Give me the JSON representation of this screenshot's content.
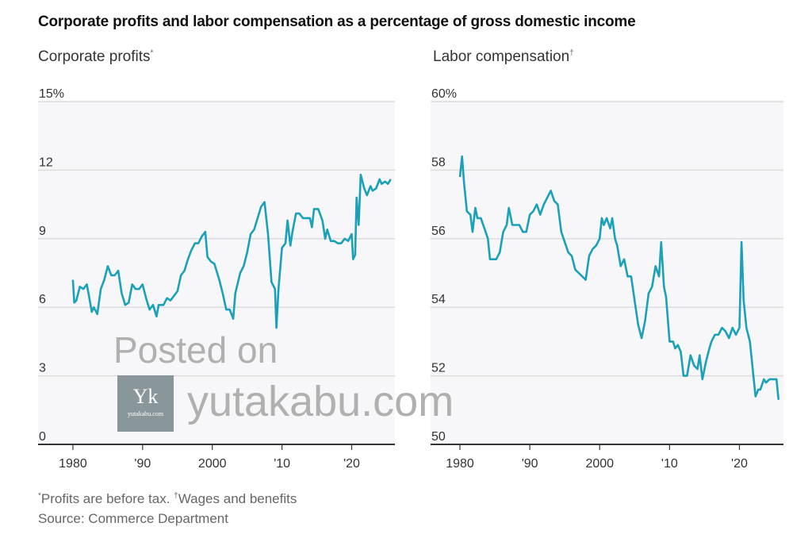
{
  "title": "Corporate profits and labor compensation as a percentage of gross domestic income",
  "footnotes": {
    "mark1": "*",
    "note1": "Profits are before tax.",
    "mark2": "†",
    "note2": "Wages and benefits",
    "source": "Source: Commerce Department"
  },
  "watermark": {
    "posted_on": "Posted on",
    "site": "yutakabu.com",
    "logo_letters": "Yk",
    "logo_site": "yutakabu.com"
  },
  "colors": {
    "line": "#1aa0b8",
    "plot_bg": "#f7f7f9",
    "grid": "#dcdcdc",
    "axis": "#333333"
  },
  "chart_data": [
    {
      "type": "line",
      "title": "Corporate profits",
      "title_mark": "*",
      "ylim": [
        0,
        15
      ],
      "yticks": [
        0,
        3,
        6,
        9,
        12,
        15
      ],
      "ytick_labels": [
        "0",
        "3",
        "6",
        "9",
        "12",
        "15%"
      ],
      "xlim": [
        1975,
        2026.2
      ],
      "xticks": [
        1980,
        1990,
        2000,
        2010,
        2020
      ],
      "xtick_labels": [
        "1980",
        "'90",
        "2000",
        "'10",
        "'20"
      ],
      "grid": true,
      "series": [
        {
          "name": "Corporate profits",
          "points": [
            [
              1980,
              7.2
            ],
            [
              1980.2,
              6.2
            ],
            [
              1980.5,
              6.3
            ],
            [
              1981,
              6.9
            ],
            [
              1981.5,
              6.8
            ],
            [
              1982,
              7.0
            ],
            [
              1982.3,
              6.5
            ],
            [
              1982.7,
              5.8
            ],
            [
              1983,
              6.0
            ],
            [
              1983.5,
              5.7
            ],
            [
              1984,
              6.8
            ],
            [
              1984.5,
              7.2
            ],
            [
              1985,
              7.8
            ],
            [
              1985.5,
              7.4
            ],
            [
              1986,
              7.4
            ],
            [
              1986.5,
              7.6
            ],
            [
              1987,
              6.6
            ],
            [
              1987.5,
              6.1
            ],
            [
              1988,
              6.2
            ],
            [
              1988.5,
              7.0
            ],
            [
              1989,
              6.8
            ],
            [
              1989.5,
              6.8
            ],
            [
              1990,
              7.0
            ],
            [
              1990.5,
              6.4
            ],
            [
              1991,
              5.9
            ],
            [
              1991.5,
              6.1
            ],
            [
              1992,
              5.6
            ],
            [
              1992.3,
              6.1
            ],
            [
              1993,
              6.1
            ],
            [
              1993.5,
              6.4
            ],
            [
              1994,
              6.3
            ],
            [
              1994.5,
              6.5
            ],
            [
              1995,
              6.7
            ],
            [
              1995.5,
              7.4
            ],
            [
              1996,
              7.6
            ],
            [
              1996.5,
              8.1
            ],
            [
              1997,
              8.5
            ],
            [
              1997.5,
              8.8
            ],
            [
              1998,
              8.8
            ],
            [
              1998.5,
              9.1
            ],
            [
              1999,
              9.3
            ],
            [
              1999.3,
              8.2
            ],
            [
              1999.8,
              8.0
            ],
            [
              2000.3,
              7.9
            ],
            [
              2001,
              7.2
            ],
            [
              2001.5,
              6.6
            ],
            [
              2002,
              5.9
            ],
            [
              2002.5,
              5.9
            ],
            [
              2003,
              5.5
            ],
            [
              2003.3,
              6.6
            ],
            [
              2004,
              7.5
            ],
            [
              2004.5,
              7.8
            ],
            [
              2005,
              8.4
            ],
            [
              2005.5,
              9.2
            ],
            [
              2006,
              9.4
            ],
            [
              2006.5,
              9.9
            ],
            [
              2007,
              10.4
            ],
            [
              2007.5,
              10.6
            ],
            [
              2008,
              9.2
            ],
            [
              2008.5,
              7.1
            ],
            [
              2009,
              6.8
            ],
            [
              2009.2,
              5.1
            ],
            [
              2009.5,
              6.8
            ],
            [
              2010,
              8.6
            ],
            [
              2010.5,
              8.8
            ],
            [
              2010.8,
              9.8
            ],
            [
              2011.2,
              8.7
            ],
            [
              2011.5,
              9.3
            ],
            [
              2012,
              10.1
            ],
            [
              2012.5,
              10.1
            ],
            [
              2013,
              9.9
            ],
            [
              2013.5,
              9.9
            ],
            [
              2014,
              9.9
            ],
            [
              2014.3,
              9.5
            ],
            [
              2014.6,
              10.3
            ],
            [
              2015.2,
              10.3
            ],
            [
              2015.8,
              9.8
            ],
            [
              2016.2,
              9.0
            ],
            [
              2016.5,
              9.4
            ],
            [
              2017,
              8.9
            ],
            [
              2017.5,
              8.9
            ],
            [
              2018,
              8.8
            ],
            [
              2018.5,
              8.8
            ],
            [
              2019,
              9.0
            ],
            [
              2019.5,
              8.9
            ],
            [
              2020,
              9.2
            ],
            [
              2020.2,
              8.1
            ],
            [
              2020.5,
              8.3
            ],
            [
              2020.7,
              10.8
            ],
            [
              2021,
              9.6
            ],
            [
              2021.3,
              11.8
            ],
            [
              2021.8,
              11.2
            ],
            [
              2022.2,
              10.9
            ],
            [
              2022.7,
              11.3
            ],
            [
              2023,
              11.1
            ],
            [
              2023.5,
              11.2
            ],
            [
              2024,
              11.6
            ],
            [
              2024.3,
              11.4
            ],
            [
              2024.8,
              11.5
            ],
            [
              2025.2,
              11.4
            ],
            [
              2025.6,
              11.6
            ]
          ]
        }
      ]
    },
    {
      "type": "line",
      "title": "Labor compensation",
      "title_mark": "†",
      "ylim": [
        50,
        60
      ],
      "yticks": [
        50,
        52,
        54,
        56,
        58,
        60
      ],
      "ytick_labels": [
        "50",
        "52",
        "54",
        "56",
        "58",
        "60%"
      ],
      "xlim": [
        1975.8,
        2026.3
      ],
      "xticks": [
        1980,
        1990,
        2000,
        2010,
        2020
      ],
      "xtick_labels": [
        "1980",
        "'90",
        "2000",
        "'10",
        "'20"
      ],
      "grid": true,
      "series": [
        {
          "name": "Labor compensation",
          "points": [
            [
              1980,
              57.8
            ],
            [
              1980.3,
              58.4
            ],
            [
              1980.6,
              57.6
            ],
            [
              1981,
              56.8
            ],
            [
              1981.5,
              56.7
            ],
            [
              1981.8,
              56.2
            ],
            [
              1982.2,
              56.9
            ],
            [
              1982.5,
              56.6
            ],
            [
              1983,
              56.6
            ],
            [
              1983.5,
              56.3
            ],
            [
              1984,
              56.0
            ],
            [
              1984.3,
              55.4
            ],
            [
              1984.7,
              55.4
            ],
            [
              1985.2,
              55.4
            ],
            [
              1985.7,
              55.6
            ],
            [
              1986.2,
              56.2
            ],
            [
              1986.7,
              56.4
            ],
            [
              1987,
              56.9
            ],
            [
              1987.5,
              56.4
            ],
            [
              1988,
              56.4
            ],
            [
              1988.5,
              56.4
            ],
            [
              1989,
              56.2
            ],
            [
              1989.5,
              56.2
            ],
            [
              1990,
              56.7
            ],
            [
              1990.5,
              56.8
            ],
            [
              1991,
              57.0
            ],
            [
              1991.5,
              56.7
            ],
            [
              1992,
              57.0
            ],
            [
              1992.5,
              57.2
            ],
            [
              1993,
              57.4
            ],
            [
              1993.5,
              57.1
            ],
            [
              1994,
              57.0
            ],
            [
              1994.5,
              56.2
            ],
            [
              1995,
              55.9
            ],
            [
              1995.5,
              55.6
            ],
            [
              1996,
              55.5
            ],
            [
              1996.5,
              55.1
            ],
            [
              1997,
              55.0
            ],
            [
              1997.5,
              54.9
            ],
            [
              1998,
              54.8
            ],
            [
              1998.5,
              55.5
            ],
            [
              1999,
              55.7
            ],
            [
              1999.5,
              55.8
            ],
            [
              2000,
              56.0
            ],
            [
              2000.3,
              56.6
            ],
            [
              2000.6,
              56.4
            ],
            [
              2001,
              56.6
            ],
            [
              2001.5,
              56.3
            ],
            [
              2001.8,
              56.6
            ],
            [
              2002.2,
              56.0
            ],
            [
              2002.5,
              55.8
            ],
            [
              2003,
              55.2
            ],
            [
              2003.5,
              55.4
            ],
            [
              2004,
              54.9
            ],
            [
              2004.5,
              54.9
            ],
            [
              2005,
              54.2
            ],
            [
              2005.5,
              53.5
            ],
            [
              2006,
              53.1
            ],
            [
              2006.5,
              53.6
            ],
            [
              2007,
              54.4
            ],
            [
              2007.5,
              54.6
            ],
            [
              2008,
              55.2
            ],
            [
              2008.5,
              54.9
            ],
            [
              2008.8,
              55.9
            ],
            [
              2009.2,
              54.6
            ],
            [
              2009.5,
              54.3
            ],
            [
              2010,
              53.0
            ],
            [
              2010.5,
              53.0
            ],
            [
              2010.8,
              52.8
            ],
            [
              2011.2,
              52.9
            ],
            [
              2011.6,
              52.7
            ],
            [
              2012,
              52.0
            ],
            [
              2012.5,
              52.0
            ],
            [
              2013,
              52.6
            ],
            [
              2013.5,
              52.3
            ],
            [
              2014,
              52.2
            ],
            [
              2014.3,
              52.6
            ],
            [
              2014.7,
              51.9
            ],
            [
              2015.2,
              52.4
            ],
            [
              2015.7,
              52.8
            ],
            [
              2016,
              53.0
            ],
            [
              2016.5,
              53.2
            ],
            [
              2017,
              53.2
            ],
            [
              2017.5,
              53.4
            ],
            [
              2018,
              53.3
            ],
            [
              2018.5,
              53.1
            ],
            [
              2019,
              53.4
            ],
            [
              2019.5,
              53.2
            ],
            [
              2020,
              53.4
            ],
            [
              2020.3,
              55.9
            ],
            [
              2020.6,
              54.2
            ],
            [
              2021,
              53.4
            ],
            [
              2021.5,
              53.0
            ],
            [
              2022,
              52.0
            ],
            [
              2022.3,
              51.4
            ],
            [
              2022.7,
              51.6
            ],
            [
              2023,
              51.6
            ],
            [
              2023.5,
              51.9
            ],
            [
              2023.8,
              51.8
            ],
            [
              2024.3,
              51.9
            ],
            [
              2024.8,
              51.9
            ],
            [
              2025.3,
              51.9
            ],
            [
              2025.6,
              51.3
            ]
          ]
        }
      ]
    }
  ]
}
